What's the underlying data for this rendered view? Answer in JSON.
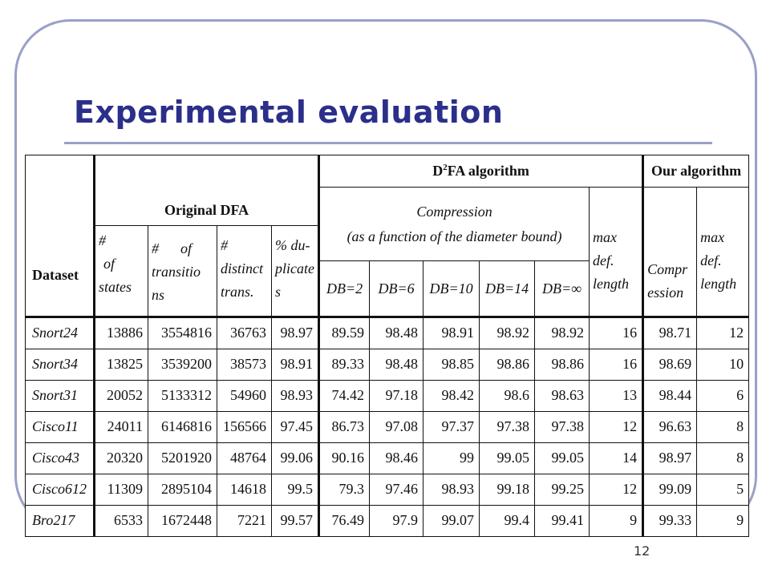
{
  "slide": {
    "title": "Experimental evaluation",
    "page_number": "12"
  },
  "table": {
    "dataset_label": "Dataset",
    "original_dfa": "Original DFA",
    "d2fa_label_pre": "D",
    "d2fa_label_sup": "2",
    "d2fa_label_post": "FA algorithm",
    "our_algorithm": "Our algorithm",
    "compression_line1": "Compression",
    "compression_line2": "(as a function of the diameter bound)",
    "col_states": [
      "#",
      "of",
      "states"
    ],
    "col_transitions": [
      "#      of",
      "transitio",
      "ns"
    ],
    "col_distinct": [
      "#",
      "distinct",
      "trans."
    ],
    "col_dup": [
      "% du-",
      "plicate",
      "s"
    ],
    "col_max_def": [
      "max",
      "def.",
      "length"
    ],
    "col_our_compr": [
      "Compr",
      "ession"
    ],
    "col_our_max_def": [
      "max",
      "def.",
      "length"
    ],
    "db_labels": [
      "DB=2",
      "DB=6",
      "DB=10",
      "DB=14",
      "DB=∞"
    ],
    "rows": [
      [
        "Snort24",
        "13886",
        "3554816",
        "36763",
        "98.97",
        "89.59",
        "98.48",
        "98.91",
        "98.92",
        "98.92",
        "16",
        "98.71",
        "12"
      ],
      [
        "Snort34",
        "13825",
        "3539200",
        "38573",
        "98.91",
        "89.33",
        "98.48",
        "98.85",
        "98.86",
        "98.86",
        "16",
        "98.69",
        "10"
      ],
      [
        "Snort31",
        "20052",
        "5133312",
        "54960",
        "98.93",
        "74.42",
        "97.18",
        "98.42",
        "98.6",
        "98.63",
        "13",
        "98.44",
        "6"
      ],
      [
        "Cisco11",
        "24011",
        "6146816",
        "156566",
        "97.45",
        "86.73",
        "97.08",
        "97.37",
        "97.38",
        "97.38",
        "12",
        "96.63",
        "8"
      ],
      [
        "Cisco43",
        "20320",
        "5201920",
        "48764",
        "99.06",
        "90.16",
        "98.46",
        "99",
        "99.05",
        "99.05",
        "14",
        "98.97",
        "8"
      ],
      [
        "Cisco612",
        "11309",
        "2895104",
        "14618",
        "99.5",
        "79.3",
        "97.46",
        "98.93",
        "99.18",
        "99.25",
        "12",
        "99.09",
        "5"
      ],
      [
        "Bro217",
        "6533",
        "1672448",
        "7221",
        "99.57",
        "76.49",
        "97.9",
        "99.07",
        "99.4",
        "99.41",
        "9",
        "99.33",
        "9"
      ]
    ]
  }
}
